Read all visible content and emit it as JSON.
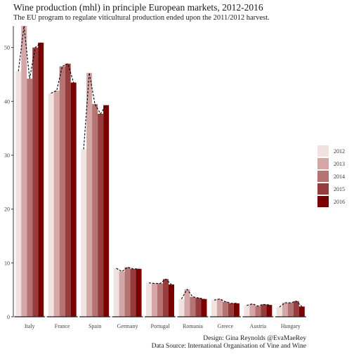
{
  "chart_data": {
    "type": "bar",
    "title": "Wine production (mhl) in principle European markets, 2012-2016",
    "subtitle": "The EU program to regulate viticultural production ended upon the 2011/2012 harvest.",
    "xlabel": "",
    "ylabel": "",
    "categories": [
      "Italy",
      "France",
      "Spain",
      "Germany",
      "Portugal",
      "Romania",
      "Greece",
      "Austria",
      "Hungary"
    ],
    "series": [
      {
        "name": "2012",
        "color": "#f1e2e2",
        "values": [
          45.6,
          41.5,
          31.1,
          9.0,
          6.3,
          3.3,
          3.1,
          2.1,
          1.8
        ]
      },
      {
        "name": "2013",
        "color": "#d4a6a6",
        "values": [
          54.0,
          42.0,
          45.3,
          8.4,
          6.2,
          5.1,
          3.3,
          2.4,
          2.6
        ]
      },
      {
        "name": "2014",
        "color": "#b57373",
        "values": [
          44.2,
          46.5,
          39.5,
          9.2,
          6.2,
          3.7,
          2.8,
          2.0,
          2.6
        ]
      },
      {
        "name": "2015",
        "color": "#963c3c",
        "values": [
          50.0,
          47.0,
          37.7,
          8.9,
          7.0,
          3.5,
          2.5,
          2.3,
          2.9
        ]
      },
      {
        "name": "2016",
        "color": "#7a0000",
        "values": [
          50.9,
          43.5,
          39.3,
          8.9,
          6.0,
          3.3,
          2.5,
          2.2,
          1.9
        ]
      }
    ],
    "ylim": [
      0,
      54
    ],
    "yticks": [
      0,
      10,
      20,
      30,
      40,
      50
    ],
    "grid": false,
    "legend_position": "right",
    "trend_line": "dashed black line connecting yearly values within each country"
  },
  "caption": {
    "design": "Design: Gina Reynolds @EvaMaeRey",
    "source": "Data Source: International Organisation of Vine and Wine"
  }
}
